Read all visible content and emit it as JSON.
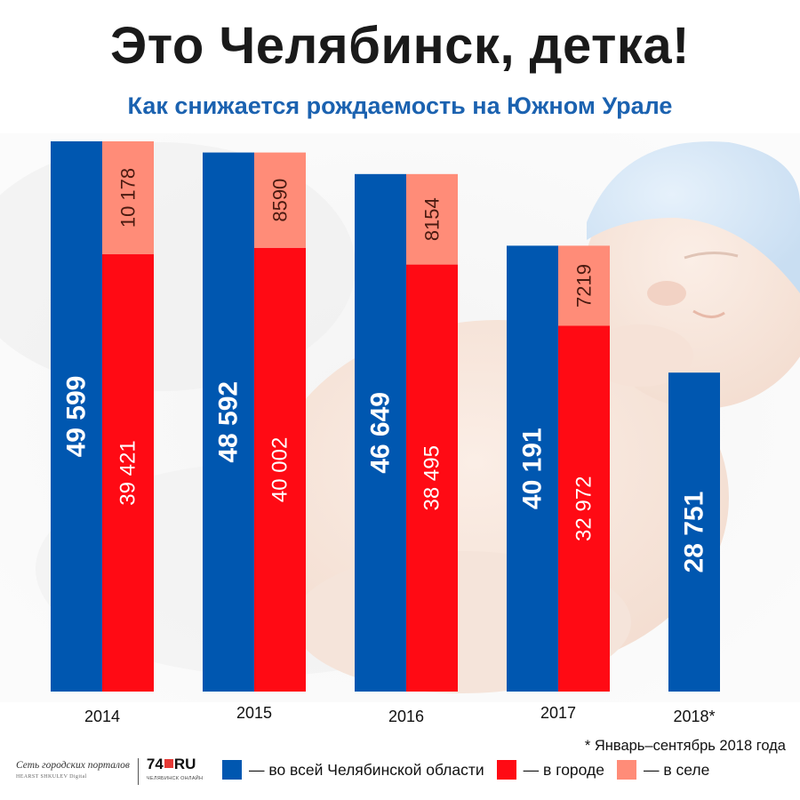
{
  "header": {
    "title": "Это Челябинск, детка!",
    "subtitle": "Как снижается рождаемость на Южном Урале"
  },
  "chart_data": {
    "type": "bar",
    "categories": [
      "2014",
      "2015",
      "2016",
      "2017",
      "2018*"
    ],
    "series": [
      {
        "key": "region",
        "values": [
          49599,
          48592,
          46649,
          40191,
          28751
        ],
        "labels": [
          "49 599",
          "48 592",
          "46 649",
          "40 191",
          "28 751"
        ],
        "color": "#0057b0"
      },
      {
        "key": "city",
        "values": [
          39421,
          40002,
          38495,
          32972,
          null
        ],
        "labels": [
          "39 421",
          "40 002",
          "38 495",
          "32 972",
          ""
        ],
        "color": "#ff0a14"
      },
      {
        "key": "village",
        "values": [
          10178,
          8590,
          8154,
          7219,
          null
        ],
        "labels": [
          "10 178",
          "8590",
          "8154",
          "7219",
          ""
        ],
        "color": "#ff8c78"
      }
    ],
    "stacked_series": [
      "city",
      "village"
    ],
    "ylim": [
      0,
      50000
    ],
    "grid": false,
    "legend": "bottom"
  },
  "footnote": "* Январь–сентябрь 2018 года",
  "legend": {
    "items": [
      {
        "label": "— во всей Челябинской области",
        "color": "#0057b0"
      },
      {
        "label": "— в городе",
        "color": "#ff0a14"
      },
      {
        "label": "— в селе",
        "color": "#ff8c78"
      }
    ]
  },
  "logos": {
    "network": "Сеть городских порталов",
    "network_sub": "HEARST SHKULEV Digital",
    "site_a": "74",
    "site_b": "RU",
    "site_sub": "ЧЕЛЯБИНСК ОНЛАЙН"
  },
  "background": {
    "photo": "sleeping-baby-photo"
  }
}
